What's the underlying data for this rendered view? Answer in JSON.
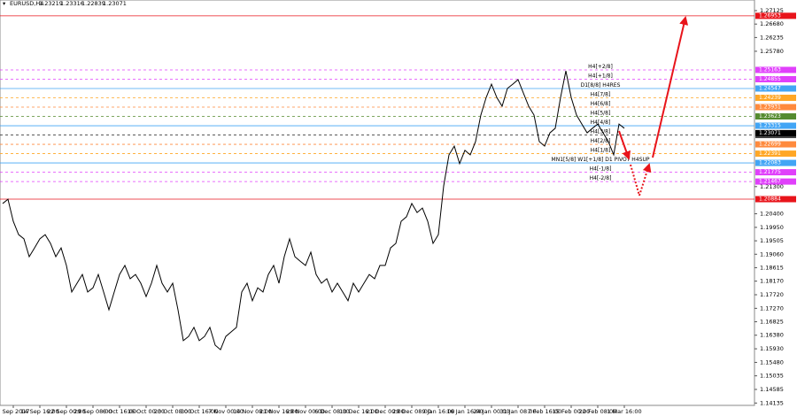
{
  "chart_data": {
    "type": "line",
    "title": "EURUSD,H4",
    "ohlc": [
      1.23219,
      1.23316,
      1.22839,
      1.23071
    ],
    "color": "#000000",
    "categories": [
      null,
      null,
      "7 Sep 2017",
      null,
      null,
      null,
      null,
      "14 Sep 16:00",
      null,
      null,
      null,
      null,
      "22 Sep 00:00",
      null,
      null,
      null,
      null,
      "29 Sep 08:00",
      null,
      null,
      null,
      null,
      "6 Oct 16:00",
      null,
      null,
      null,
      null,
      "16 Oct 00:00",
      null,
      null,
      null,
      null,
      "23 Oct 08:00",
      null,
      null,
      null,
      null,
      "30 Oct 16:00",
      null,
      null,
      null,
      null,
      "7 Nov 00:00",
      null,
      null,
      null,
      null,
      "14 Nov 08:00",
      null,
      null,
      null,
      null,
      "21 Nov 16:00",
      null,
      null,
      null,
      null,
      "29 Nov 00:00",
      null,
      null,
      null,
      null,
      "6 Dec 08:00",
      null,
      null,
      null,
      null,
      "13 Dec 16:00",
      null,
      null,
      null,
      null,
      "21 Dec 00:00",
      null,
      null,
      null,
      null,
      "29 Dec 08:00",
      null,
      null,
      null,
      null,
      "9 Jan 16:00",
      null,
      null,
      null,
      null,
      "16 Jan 16:00",
      null,
      null,
      null,
      null,
      "24 Jan 00:00",
      null,
      null,
      null,
      null,
      "31 Jan 08:00",
      null,
      null,
      null,
      null,
      "7 Feb 16:00",
      null,
      null,
      null,
      null,
      "15 Feb 00:00",
      null,
      null,
      null,
      null,
      "22 Feb 08:00",
      null,
      null,
      null,
      null,
      "1 Mar 16:00"
    ],
    "values": [
      1.2074,
      1.2088,
      1.2015,
      1.1971,
      1.1957,
      1.1898,
      1.1927,
      1.1957,
      1.1971,
      1.1942,
      1.1898,
      1.1927,
      1.1869,
      1.1781,
      1.181,
      1.1839,
      1.1781,
      1.1795,
      1.1839,
      1.1781,
      1.1722,
      1.1781,
      1.1839,
      1.1869,
      1.1825,
      1.1839,
      1.181,
      1.1766,
      1.181,
      1.1869,
      1.181,
      1.1781,
      1.181,
      1.1722,
      1.162,
      1.1634,
      1.1664,
      1.162,
      1.1634,
      1.1664,
      1.1605,
      1.159,
      1.1634,
      1.1649,
      1.1664,
      1.1781,
      1.181,
      1.1752,
      1.1795,
      1.1781,
      1.1839,
      1.1869,
      1.181,
      1.1898,
      1.1957,
      1.1898,
      1.1883,
      1.1869,
      1.1913,
      1.1839,
      1.181,
      1.1825,
      1.1781,
      1.181,
      1.1781,
      1.1752,
      1.181,
      1.1781,
      1.181,
      1.1839,
      1.1825,
      1.1869,
      1.1869,
      1.1927,
      1.1942,
      1.2015,
      1.203,
      1.2074,
      1.2044,
      1.2059,
      1.2015,
      1.1942,
      1.1971,
      1.2132,
      1.2235,
      1.2264,
      1.2206,
      1.225,
      1.2235,
      1.2279,
      1.2367,
      1.2425,
      1.2469,
      1.2425,
      1.2396,
      1.2455,
      1.2469,
      1.2484,
      1.244,
      1.2396,
      1.2367,
      1.2279,
      1.2264,
      1.2308,
      1.2323,
      1.2425,
      1.2513,
      1.2425,
      1.2367,
      1.2337,
      1.2308,
      1.2323,
      1.2337,
      1.2308,
      1.2279,
      1.2235,
      1.2337,
      1.2323
    ],
    "ylim": [
      1.14057,
      1.27477
    ],
    "yticks": [
      1.27125,
      {
        "value": 1.2668,
        "label": "1.26680"
      },
      1.26235,
      {
        "value": 1.2578,
        "label": "1.25780"
      },
      {
        "value": 1.213,
        "label": "1.21300"
      },
      {
        "value": 1.204,
        "label": "1.20400"
      },
      {
        "value": 1.1995,
        "label": "1.19950"
      },
      1.19505,
      {
        "value": 1.1906,
        "label": "1.19060"
      },
      1.18615,
      {
        "value": 1.1817,
        "label": "1.18170"
      },
      {
        "value": 1.1772,
        "label": "1.17720"
      },
      {
        "value": 1.1727,
        "label": "1.17270"
      },
      1.16825,
      {
        "value": 1.1638,
        "label": "1.16380"
      },
      {
        "value": 1.1593,
        "label": "1.15930"
      },
      {
        "value": 1.1548,
        "label": "1.15480"
      },
      1.15035,
      1.14585,
      1.14135
    ],
    "levels": [
      {
        "value": 1.26953,
        "color": "#e8141b",
        "style": "solid"
      },
      {
        "name": "H4[+2/8]",
        "value": 1.25163,
        "color": "#e040fb",
        "style": "dashed"
      },
      {
        "name": "H4[+1/8]",
        "value": 1.24855,
        "color": "#e040fb",
        "style": "dashed"
      },
      {
        "name": "D1[8/8] H4RES",
        "value": 1.24547,
        "color": "#42a5f5",
        "style": "solid"
      },
      {
        "name": "H4[7/8]",
        "value": 1.24239,
        "color": "#ffa726",
        "style": "dashed"
      },
      {
        "name": "H4[6/8]",
        "value": 1.23931,
        "color": "#ff8a3d",
        "style": "dashed"
      },
      {
        "name": "H4[5/8]",
        "value": 1.23623,
        "color": "#558b2f",
        "style": "dashed"
      },
      {
        "name": "H4[4/8]",
        "value": 1.23315,
        "color": "#42a5f5",
        "style": "solid"
      },
      {
        "name": "H4[3/8]",
        "value": 1.23007,
        "color": "#424242",
        "style": "dashed"
      },
      {
        "name": "H4[2/8]",
        "value": 1.22699,
        "color": "#ff8a3d",
        "style": "dashed"
      },
      {
        "name": "H4[1/8]",
        "value": 1.22391,
        "color": "#ffa726",
        "style": "dashed"
      },
      {
        "name": "MN1[5/8] W1[+1/8] D1 PIVOT H4SUP",
        "value": 1.22083,
        "color": "#42a5f5",
        "style": "solid"
      },
      {
        "name": "H4[-1/8]",
        "value": 1.21775,
        "color": "#e040fb",
        "style": "dashed"
      },
      {
        "name": "H4[-2/8]",
        "value": 1.21467,
        "color": "#e040fb",
        "style": "dashed"
      },
      {
        "value": 1.20884,
        "color": "#e8141b",
        "style": "solid"
      }
    ]
  }
}
